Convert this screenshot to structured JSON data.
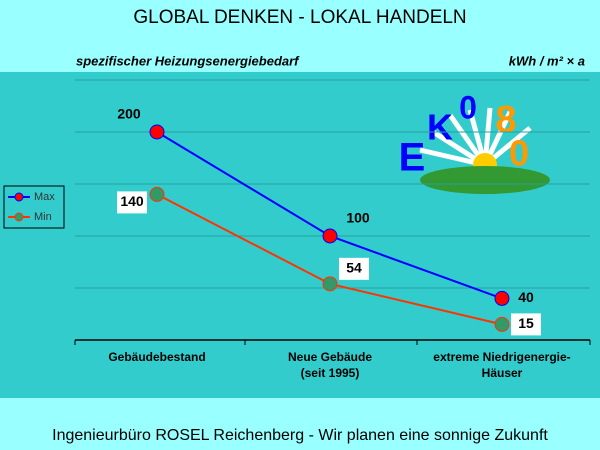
{
  "header": {
    "title": "GLOBAL DENKEN  -  LOKAL HANDELN"
  },
  "chart_data": {
    "type": "line",
    "subtitle": "spezifischer Heizungsenergiebedarf",
    "unit": "kWh / m² × a",
    "categories": [
      "Gebäudebestand",
      "Neue Gebäude\n(seit 1995)",
      "extreme Niedrigenergie-\nHäuser"
    ],
    "series": [
      {
        "name": "Max",
        "color": "#0000ff",
        "marker_color": "#ff0000",
        "values": [
          200,
          100,
          40
        ]
      },
      {
        "name": "Min",
        "color": "#ff3300",
        "marker_color": "#339966",
        "values": [
          140,
          54,
          15
        ]
      }
    ],
    "ylim": [
      0,
      250
    ],
    "yticks": [
      0,
      50,
      100,
      150,
      200,
      250
    ],
    "grid": true,
    "legend": "left"
  },
  "logo": {
    "letters": [
      "E",
      "K",
      "0",
      "8",
      "0"
    ]
  },
  "footer": {
    "text": "Ingenieurbüro ROSEL Reichenberg - Wir planen eine sonnige Zukunft"
  }
}
